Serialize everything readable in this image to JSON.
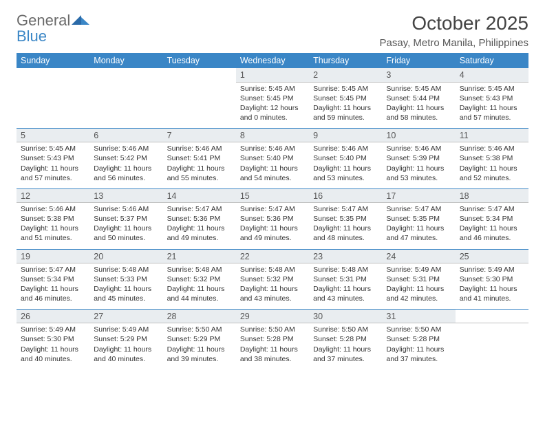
{
  "logo": {
    "text1": "General",
    "text2": "Blue"
  },
  "title": "October 2025",
  "location": "Pasay, Metro Manila, Philippines",
  "weekdays": [
    "Sunday",
    "Monday",
    "Tuesday",
    "Wednesday",
    "Thursday",
    "Friday",
    "Saturday"
  ],
  "colors": {
    "header_bg": "#3a86c6",
    "header_text": "#ffffff",
    "daynum_bg": "#e9edf0",
    "text": "#333333",
    "row_border": "#3a86c6",
    "logo_gray": "#6a6a6a",
    "logo_blue": "#3a86c6"
  },
  "typography": {
    "title_fontsize": 28,
    "location_fontsize": 15,
    "weekday_fontsize": 12.5,
    "daynum_fontsize": 12.5,
    "detail_fontsize": 10.5
  },
  "layout": {
    "columns": 7,
    "weeks": 5,
    "first_weekday_index": 3
  },
  "weeks": [
    [
      null,
      null,
      null,
      {
        "n": "1",
        "sr": "5:45 AM",
        "ss": "5:45 PM",
        "dl": "12 hours and 0 minutes."
      },
      {
        "n": "2",
        "sr": "5:45 AM",
        "ss": "5:45 PM",
        "dl": "11 hours and 59 minutes."
      },
      {
        "n": "3",
        "sr": "5:45 AM",
        "ss": "5:44 PM",
        "dl": "11 hours and 58 minutes."
      },
      {
        "n": "4",
        "sr": "5:45 AM",
        "ss": "5:43 PM",
        "dl": "11 hours and 57 minutes."
      }
    ],
    [
      {
        "n": "5",
        "sr": "5:45 AM",
        "ss": "5:43 PM",
        "dl": "11 hours and 57 minutes."
      },
      {
        "n": "6",
        "sr": "5:46 AM",
        "ss": "5:42 PM",
        "dl": "11 hours and 56 minutes."
      },
      {
        "n": "7",
        "sr": "5:46 AM",
        "ss": "5:41 PM",
        "dl": "11 hours and 55 minutes."
      },
      {
        "n": "8",
        "sr": "5:46 AM",
        "ss": "5:40 PM",
        "dl": "11 hours and 54 minutes."
      },
      {
        "n": "9",
        "sr": "5:46 AM",
        "ss": "5:40 PM",
        "dl": "11 hours and 53 minutes."
      },
      {
        "n": "10",
        "sr": "5:46 AM",
        "ss": "5:39 PM",
        "dl": "11 hours and 53 minutes."
      },
      {
        "n": "11",
        "sr": "5:46 AM",
        "ss": "5:38 PM",
        "dl": "11 hours and 52 minutes."
      }
    ],
    [
      {
        "n": "12",
        "sr": "5:46 AM",
        "ss": "5:38 PM",
        "dl": "11 hours and 51 minutes."
      },
      {
        "n": "13",
        "sr": "5:46 AM",
        "ss": "5:37 PM",
        "dl": "11 hours and 50 minutes."
      },
      {
        "n": "14",
        "sr": "5:47 AM",
        "ss": "5:36 PM",
        "dl": "11 hours and 49 minutes."
      },
      {
        "n": "15",
        "sr": "5:47 AM",
        "ss": "5:36 PM",
        "dl": "11 hours and 49 minutes."
      },
      {
        "n": "16",
        "sr": "5:47 AM",
        "ss": "5:35 PM",
        "dl": "11 hours and 48 minutes."
      },
      {
        "n": "17",
        "sr": "5:47 AM",
        "ss": "5:35 PM",
        "dl": "11 hours and 47 minutes."
      },
      {
        "n": "18",
        "sr": "5:47 AM",
        "ss": "5:34 PM",
        "dl": "11 hours and 46 minutes."
      }
    ],
    [
      {
        "n": "19",
        "sr": "5:47 AM",
        "ss": "5:34 PM",
        "dl": "11 hours and 46 minutes."
      },
      {
        "n": "20",
        "sr": "5:48 AM",
        "ss": "5:33 PM",
        "dl": "11 hours and 45 minutes."
      },
      {
        "n": "21",
        "sr": "5:48 AM",
        "ss": "5:32 PM",
        "dl": "11 hours and 44 minutes."
      },
      {
        "n": "22",
        "sr": "5:48 AM",
        "ss": "5:32 PM",
        "dl": "11 hours and 43 minutes."
      },
      {
        "n": "23",
        "sr": "5:48 AM",
        "ss": "5:31 PM",
        "dl": "11 hours and 43 minutes."
      },
      {
        "n": "24",
        "sr": "5:49 AM",
        "ss": "5:31 PM",
        "dl": "11 hours and 42 minutes."
      },
      {
        "n": "25",
        "sr": "5:49 AM",
        "ss": "5:30 PM",
        "dl": "11 hours and 41 minutes."
      }
    ],
    [
      {
        "n": "26",
        "sr": "5:49 AM",
        "ss": "5:30 PM",
        "dl": "11 hours and 40 minutes."
      },
      {
        "n": "27",
        "sr": "5:49 AM",
        "ss": "5:29 PM",
        "dl": "11 hours and 40 minutes."
      },
      {
        "n": "28",
        "sr": "5:50 AM",
        "ss": "5:29 PM",
        "dl": "11 hours and 39 minutes."
      },
      {
        "n": "29",
        "sr": "5:50 AM",
        "ss": "5:28 PM",
        "dl": "11 hours and 38 minutes."
      },
      {
        "n": "30",
        "sr": "5:50 AM",
        "ss": "5:28 PM",
        "dl": "11 hours and 37 minutes."
      },
      {
        "n": "31",
        "sr": "5:50 AM",
        "ss": "5:28 PM",
        "dl": "11 hours and 37 minutes."
      },
      null
    ]
  ],
  "labels": {
    "sunrise": "Sunrise:",
    "sunset": "Sunset:",
    "daylight": "Daylight:"
  }
}
